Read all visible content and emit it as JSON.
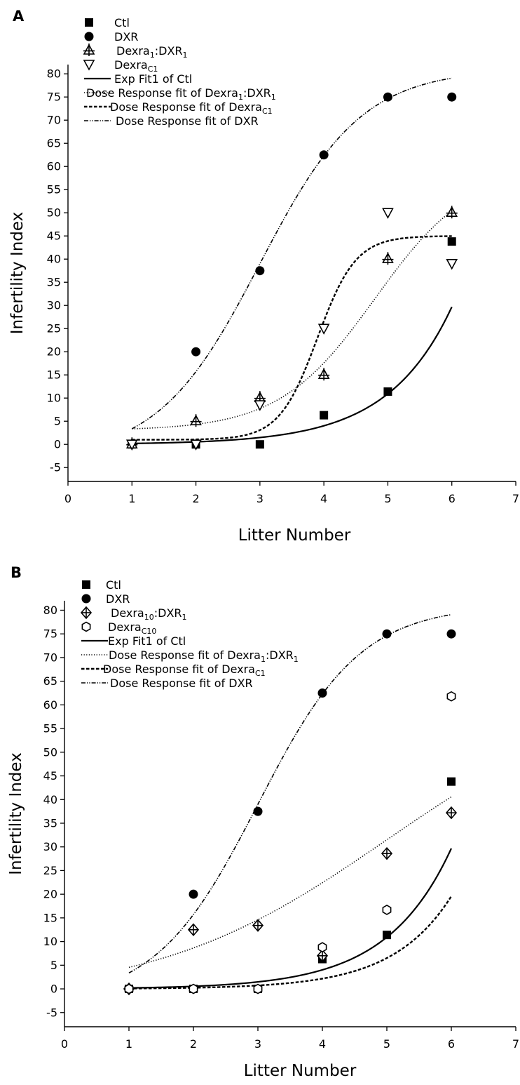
{
  "chart_data": [
    {
      "type": "scatter",
      "panel_label": "A",
      "xlabel": "Litter Number",
      "ylabel": "Infertility Index",
      "xlim": [
        0,
        7
      ],
      "ylim": [
        -8,
        82
      ],
      "xticks": [
        0,
        1,
        2,
        3,
        4,
        5,
        6,
        7
      ],
      "yticks": [
        -5,
        0,
        5,
        10,
        15,
        20,
        25,
        30,
        35,
        40,
        45,
        50,
        55,
        60,
        65,
        70,
        75,
        80
      ],
      "grid": false,
      "legend_position": "top-left",
      "series": [
        {
          "name": "Ctl",
          "marker": "square",
          "x": [
            1,
            2,
            3,
            4,
            5,
            6
          ],
          "y": [
            0,
            0,
            0,
            6.3,
            11.4,
            43.8
          ]
        },
        {
          "name": "DXR",
          "marker": "circle",
          "x": [
            1,
            2,
            3,
            4,
            5,
            6
          ],
          "y": [
            0,
            20,
            37.5,
            62.5,
            75,
            75
          ]
        },
        {
          "name": "Dexra",
          "sub": "1",
          "name2": ":DXR",
          "sub2": "1",
          "marker": "triangle-up-cross",
          "x": [
            1,
            2,
            3,
            4,
            5,
            6
          ],
          "y": [
            0,
            5,
            10,
            15,
            40,
            50
          ]
        },
        {
          "name": "Dexra",
          "sub": "C1",
          "marker": "triangle-down-open",
          "x": [
            1,
            2,
            3,
            4,
            5,
            6
          ],
          "y": [
            0,
            0,
            8.5,
            25,
            50,
            39
          ]
        }
      ],
      "fits": [
        {
          "name": "Exp Fit1 of Ctl",
          "style": "solid",
          "model": "exp",
          "params": {
            "y0": 0,
            "A": 0.2,
            "k": 1.0
          },
          "x_range": [
            1,
            6
          ]
        },
        {
          "name": "Dose Response fit of Dexra",
          "sub": "1",
          "name2": ":DXR",
          "sub2": "1",
          "style": "dotted",
          "model": "logistic",
          "params": {
            "bottom": 3,
            "top": 60,
            "x0": 4.8,
            "s": 0.75
          },
          "x_range": [
            1,
            6
          ]
        },
        {
          "name": "Dose Response fit of Dexra",
          "sub": "C1",
          "style": "dashed",
          "model": "logistic",
          "params": {
            "bottom": 1,
            "top": 45,
            "x0": 3.9,
            "s": 0.3
          },
          "x_range": [
            1,
            6
          ]
        },
        {
          "name": "Dose Response fit of DXR",
          "style": "dashdotdot",
          "model": "logistic",
          "params": {
            "bottom": -3,
            "top": 81,
            "x0": 3,
            "s": 0.8
          },
          "x_range": [
            1,
            6
          ]
        }
      ]
    },
    {
      "type": "scatter",
      "panel_label": "B",
      "xlabel": "Litter Number",
      "ylabel": "Infertility Index",
      "xlim": [
        0,
        7
      ],
      "ylim": [
        -8,
        82
      ],
      "xticks": [
        0,
        1,
        2,
        3,
        4,
        5,
        6,
        7
      ],
      "yticks": [
        -5,
        0,
        5,
        10,
        15,
        20,
        25,
        30,
        35,
        40,
        45,
        50,
        55,
        60,
        65,
        70,
        75,
        80
      ],
      "grid": false,
      "legend_position": "top-left",
      "series": [
        {
          "name": "Ctl",
          "marker": "square",
          "x": [
            1,
            2,
            3,
            4,
            5,
            6
          ],
          "y": [
            0,
            0,
            0,
            6.3,
            11.4,
            43.8
          ]
        },
        {
          "name": "DXR",
          "marker": "circle",
          "x": [
            1,
            2,
            3,
            4,
            5,
            6
          ],
          "y": [
            0,
            20,
            37.5,
            62.5,
            75,
            75
          ]
        },
        {
          "name": "Dexra",
          "sub": "10",
          "name2": ":DXR",
          "sub2": "1",
          "marker": "diamond-cross",
          "x": [
            1,
            2,
            3,
            4,
            5,
            6
          ],
          "y": [
            0,
            12.5,
            13.4,
            7,
            28.6,
            37.2
          ]
        },
        {
          "name": "Dexra",
          "sub": "C10",
          "marker": "hexagon-open",
          "x": [
            1,
            2,
            3,
            4,
            5,
            6
          ],
          "y": [
            0,
            0,
            0,
            8.8,
            16.7,
            61.8
          ]
        }
      ],
      "fits": [
        {
          "name": "Exp Fit1 of Ctl",
          "style": "solid",
          "model": "exp",
          "params": {
            "y0": 0,
            "A": 0.2,
            "k": 1.0
          },
          "x_range": [
            1,
            6
          ]
        },
        {
          "name": "Dose Response fit of Dexra",
          "sub": "1",
          "name2": ":DXR",
          "sub2": "1",
          "style": "dotted",
          "model": "logistic",
          "params": {
            "bottom": -2,
            "top": 65,
            "x0": 5,
            "s": 1.8
          },
          "x_range": [
            1,
            6
          ]
        },
        {
          "name": "Dose Response fit of Dexra",
          "sub": "C1",
          "style": "dashed",
          "model": "exp",
          "params": {
            "y0": 0,
            "A": 0.08,
            "k": 1.1
          },
          "x_range": [
            1,
            6
          ]
        },
        {
          "name": "Dose Response fit of DXR",
          "style": "dashdotdot",
          "model": "logistic",
          "params": {
            "bottom": -3,
            "top": 81,
            "x0": 3,
            "s": 0.8
          },
          "x_range": [
            1,
            6
          ]
        }
      ]
    }
  ]
}
